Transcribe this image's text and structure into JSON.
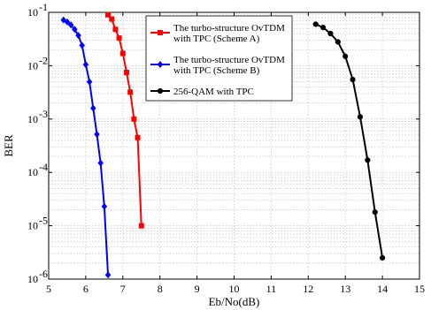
{
  "chart_data": {
    "type": "line",
    "xlabel": "Eb/No(dB)",
    "ylabel": "BER",
    "xlim": [
      5,
      15
    ],
    "ylim": [
      1e-06,
      0.1
    ],
    "yscale": "log",
    "grid": true,
    "legend_position": "top-center",
    "x_ticks": [
      "5",
      "6",
      "7",
      "8",
      "9",
      "10",
      "11",
      "12",
      "13",
      "14",
      "15"
    ],
    "y_ticks": [
      {
        "base": "10",
        "exp": "-1"
      },
      {
        "base": "10",
        "exp": "-2"
      },
      {
        "base": "10",
        "exp": "-3"
      },
      {
        "base": "10",
        "exp": "-4"
      },
      {
        "base": "10",
        "exp": "-5"
      },
      {
        "base": "10",
        "exp": "-6"
      }
    ],
    "series": [
      {
        "name": [
          "The turbo-structure OvTDM",
          "with TPC (Scheme A)"
        ],
        "color": "#ff0000",
        "marker": "square",
        "x": [
          6.6,
          6.7,
          6.8,
          6.9,
          7.0,
          7.1,
          7.2,
          7.3,
          7.4,
          7.5
        ],
        "y": [
          0.09,
          0.075,
          0.048,
          0.033,
          0.017,
          0.0075,
          0.0032,
          0.001,
          0.00045,
          1e-05
        ]
      },
      {
        "name": [
          "The turbo-structure OvTDM",
          "with TPC (Scheme B)"
        ],
        "color": "#0000ff",
        "marker": "diamond",
        "x": [
          5.4,
          5.5,
          5.6,
          5.7,
          5.8,
          5.9,
          6.0,
          6.1,
          6.2,
          6.3,
          6.4,
          6.5,
          6.6
        ],
        "y": [
          0.072,
          0.066,
          0.058,
          0.048,
          0.037,
          0.024,
          0.0105,
          0.005,
          0.0016,
          0.00052,
          0.00015,
          2.3e-05,
          1.2e-06
        ]
      },
      {
        "name": [
          "256-QAM with TPC"
        ],
        "color": "#000000",
        "marker": "circle",
        "x": [
          12.2,
          12.4,
          12.6,
          12.8,
          13.0,
          13.2,
          13.4,
          13.6,
          13.8,
          14.0
        ],
        "y": [
          0.06,
          0.052,
          0.04,
          0.028,
          0.015,
          0.0055,
          0.0011,
          0.00017,
          1.8e-05,
          2.5e-06
        ]
      }
    ]
  }
}
